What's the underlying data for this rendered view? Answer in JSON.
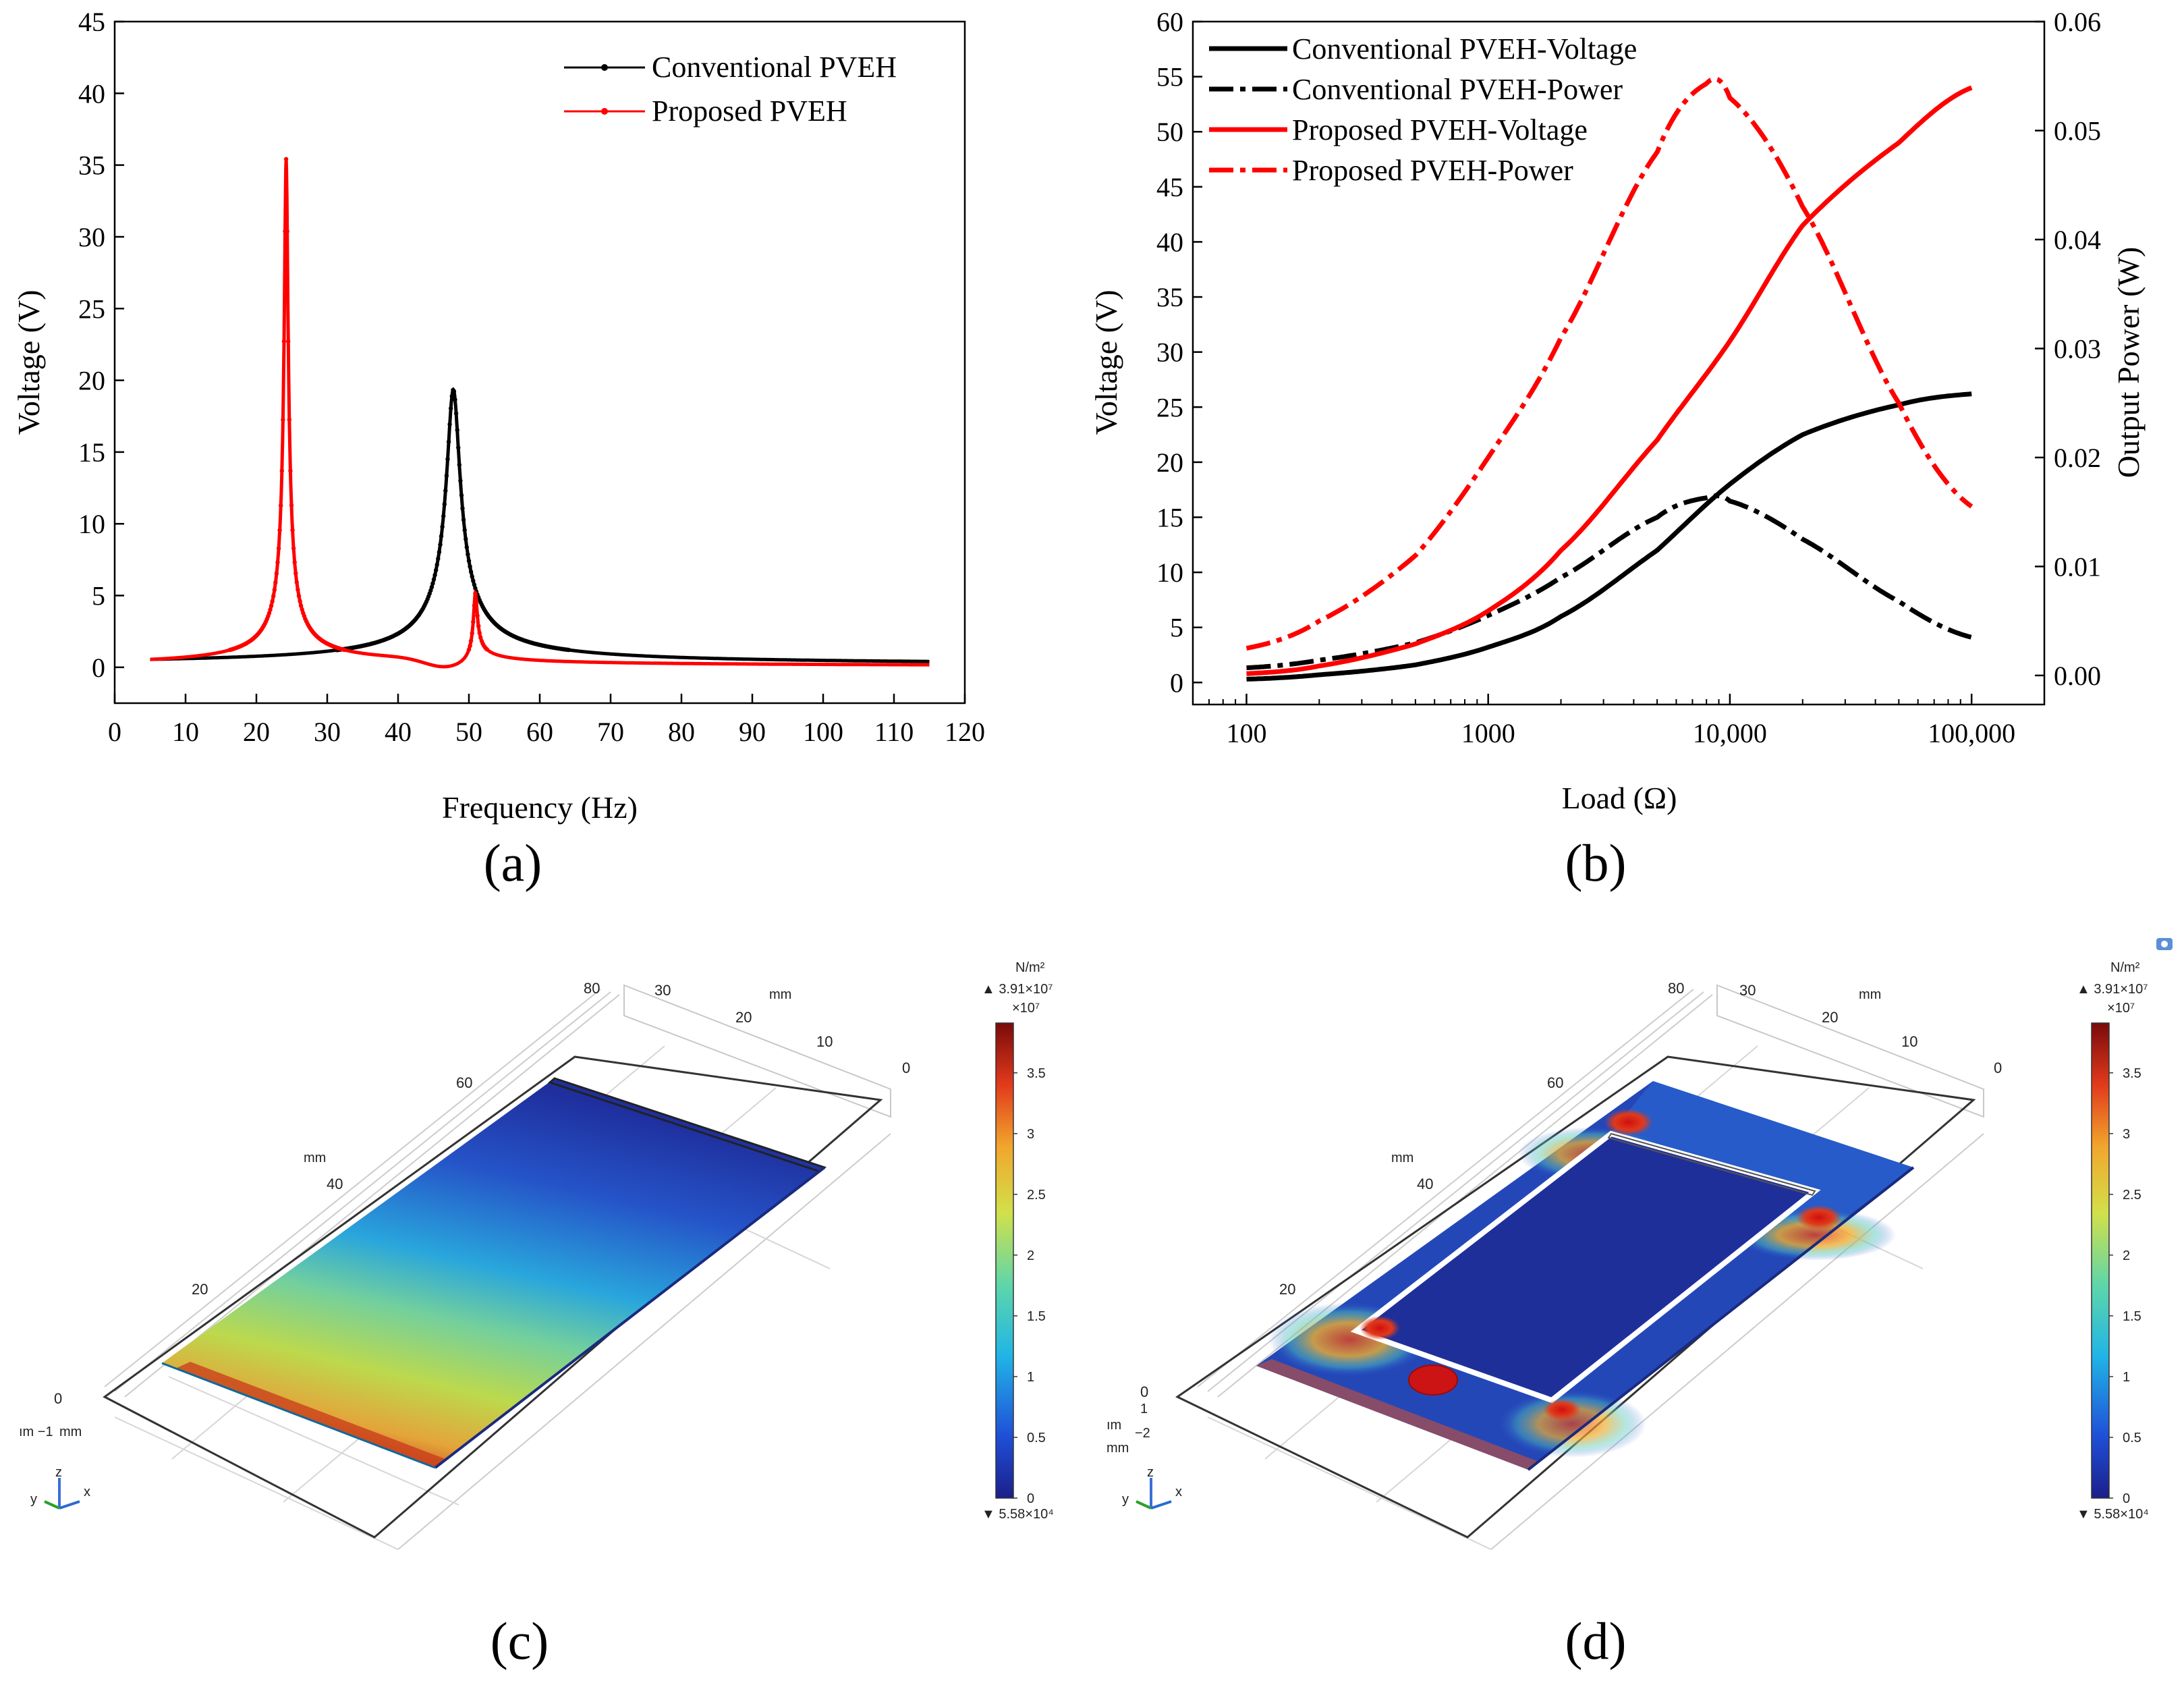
{
  "panels": {
    "a": {
      "letter": "(a)"
    },
    "b": {
      "letter": "(b)"
    },
    "c": {
      "letter": "(c)"
    },
    "d": {
      "letter": "(d)"
    }
  },
  "chart_data": [
    {
      "id": "a",
      "type": "line",
      "title": "",
      "xlabel": "Frequency (Hz)",
      "ylabel": "Voltage (V)",
      "xlim": [
        0,
        120
      ],
      "ylim": [
        -2.5,
        45
      ],
      "x_ticks": [
        0,
        10,
        20,
        30,
        40,
        50,
        60,
        70,
        80,
        90,
        100,
        110,
        120
      ],
      "y_ticks": [
        0,
        5,
        10,
        15,
        20,
        25,
        30,
        35,
        40,
        45
      ],
      "legend_position": "top-right",
      "series": [
        {
          "name": "Conventional PVEH",
          "color": "#000000",
          "marker": "dot",
          "model": {
            "x_range": [
              5,
              115
            ],
            "baseline": 0.15,
            "peaks": [
              {
                "f0": 47.8,
                "amp": 19.2,
                "hw": 0.9
              }
            ]
          }
        },
        {
          "name": "Proposed PVEH",
          "color": "#ff0000",
          "marker": "dot",
          "model": {
            "x_range": [
              5,
              115
            ],
            "baseline": 0.05,
            "peaks": [
              {
                "f0": 24.2,
                "amp": 35.3,
                "hw": 0.25
              },
              {
                "f0": 50.9,
                "amp": 6.8,
                "hw": 0.25
              }
            ],
            "antiresonance": {
              "f0": 46.5,
              "hw": 4.0
            }
          }
        }
      ]
    },
    {
      "id": "b",
      "type": "line",
      "title": "",
      "xlabel": "Load (Ω)",
      "ylabel": "Voltage (V)",
      "y2label": "Output Power (W)",
      "xscale": "log",
      "xlim": [
        60,
        200000
      ],
      "ylim": [
        -2,
        60
      ],
      "y2lim": [
        -0.0026667,
        0.06
      ],
      "x_ticks": [
        100,
        1000,
        10000,
        100000
      ],
      "x_tick_labels": [
        "100",
        "1000",
        "10,000",
        "100,000"
      ],
      "y_ticks": [
        0,
        5,
        10,
        15,
        20,
        25,
        30,
        35,
        40,
        45,
        50,
        55,
        60
      ],
      "y2_ticks": [
        0.0,
        0.01,
        0.02,
        0.03,
        0.04,
        0.05,
        0.06
      ],
      "y2_tick_labels": [
        "0.00",
        "0.01",
        "0.02",
        "0.03",
        "0.04",
        "0.05",
        "0.06"
      ],
      "legend_position": "top-left",
      "series": [
        {
          "name": "Conventional PVEH-Voltage",
          "color": "#000000",
          "style": "solid",
          "axis": "left",
          "x": [
            100,
            200,
            500,
            1000,
            2000,
            5000,
            10000,
            20000,
            50000,
            100000
          ],
          "y": [
            0.3,
            0.7,
            1.6,
            3.2,
            6.0,
            12.0,
            18.0,
            22.5,
            25.2,
            26.2
          ]
        },
        {
          "name": "Conventional PVEH-Power",
          "color": "#000000",
          "style": "dashdot",
          "axis": "right",
          "x": [
            100,
            200,
            500,
            1000,
            2000,
            5000,
            8000,
            10000,
            20000,
            50000,
            100000
          ],
          "y": [
            0.0007,
            0.0014,
            0.003,
            0.0055,
            0.009,
            0.0145,
            0.0163,
            0.016,
            0.0125,
            0.0068,
            0.0035
          ]
        },
        {
          "name": "Proposed PVEH-Voltage",
          "color": "#ff0000",
          "style": "solid",
          "axis": "left",
          "x": [
            100,
            200,
            500,
            1000,
            2000,
            5000,
            10000,
            20000,
            50000,
            100000
          ],
          "y": [
            0.8,
            1.5,
            3.5,
            6.5,
            12.0,
            22.0,
            31.0,
            41.5,
            49.0,
            54.0
          ]
        },
        {
          "name": "Proposed PVEH-Power",
          "color": "#ff0000",
          "style": "dashdot",
          "axis": "right",
          "x": [
            100,
            200,
            500,
            1000,
            2000,
            5000,
            8000,
            10000,
            20000,
            50000,
            100000
          ],
          "y": [
            0.0025,
            0.005,
            0.011,
            0.02,
            0.031,
            0.048,
            0.0543,
            0.053,
            0.043,
            0.025,
            0.0155
          ]
        }
      ]
    }
  ],
  "simulations": {
    "c": {
      "unit_label": "N/m²",
      "max_label": "▲ 3.91×10⁷",
      "min_label": "▼ 5.58×10⁴",
      "scale_label": "×10⁷",
      "colorbar_ticks": [
        "3.5",
        "3",
        "2.5",
        "2",
        "1.5",
        "1",
        "0.5",
        "0"
      ],
      "axis_ticks": {
        "t80": "80",
        "t60": "60",
        "t40": "40",
        "t20": "20",
        "t0": "0",
        "t30": "30",
        "t20r": "20",
        "t10": "10",
        "t0r": "0",
        "mm_a": "mm",
        "mm_b": "mm",
        "mm_c": "mm",
        "frag": "ım  −1"
      },
      "triad": {
        "y": "y",
        "z": "z",
        "x": "x"
      }
    },
    "d": {
      "unit_label": "N/m²",
      "max_label": "▲ 3.91×10⁷",
      "min_label": "▼ 5.58×10⁴",
      "scale_label": "×10⁷",
      "colorbar_ticks": [
        "3.5",
        "3",
        "2.5",
        "2",
        "1.5",
        "1",
        "0.5",
        "0"
      ],
      "axis_ticks": {
        "t80": "80",
        "t60": "60",
        "t40": "40",
        "t20": "20",
        "t0": "0",
        "t30": "30",
        "t20r": "20",
        "t10": "10",
        "t0r": "0",
        "mm_a": "mm",
        "mm_b": "mm",
        "mm_c": "mm",
        "z1": "1",
        "zm2": "−2",
        "frag": "ım"
      },
      "triad": {
        "y": "y",
        "z": "z",
        "x": "x"
      }
    }
  }
}
